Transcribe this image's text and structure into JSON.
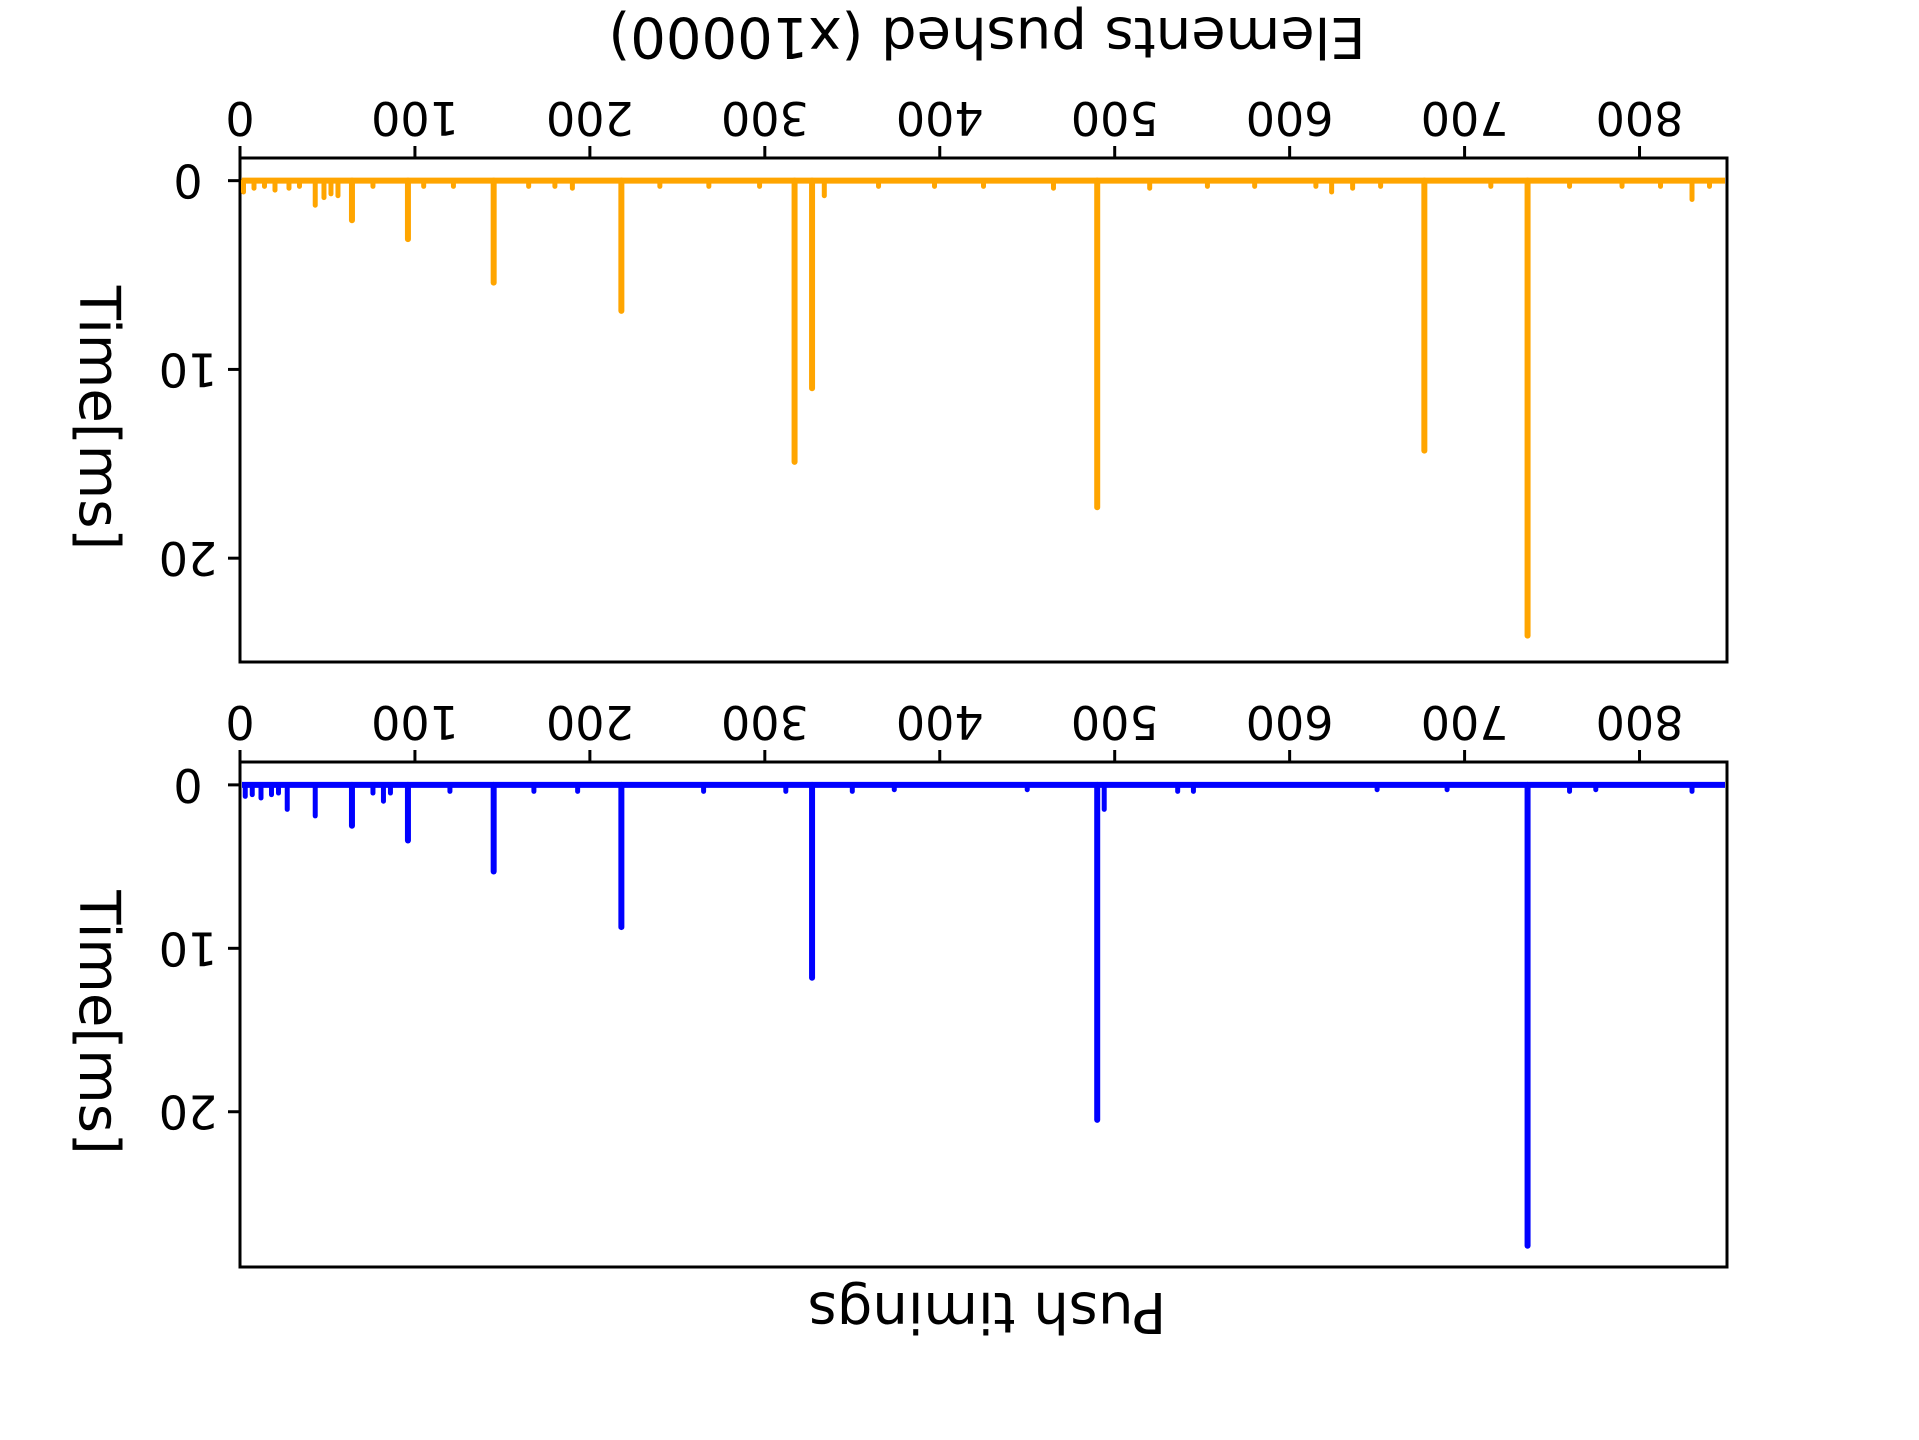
{
  "chart_data": [
    {
      "type": "line",
      "title": "Elements pushed (x10000)",
      "xlabel": "",
      "ylabel": "Time[ms]",
      "xlim": [
        0,
        850
      ],
      "ylim": [
        -1.2,
        25.5
      ],
      "x_ticks": [
        0,
        100,
        200,
        300,
        400,
        500,
        600,
        700,
        800
      ],
      "y_ticks": [
        0,
        10,
        20
      ],
      "line_color": "#ffa500",
      "spikes": [
        {
          "x": 2,
          "y": 0.6
        },
        {
          "x": 8,
          "y": 0.4
        },
        {
          "x": 14,
          "y": 0.3
        },
        {
          "x": 20,
          "y": 0.5
        },
        {
          "x": 28,
          "y": 0.4
        },
        {
          "x": 34,
          "y": 0.3
        },
        {
          "x": 43,
          "y": 1.3
        },
        {
          "x": 48,
          "y": 0.9
        },
        {
          "x": 52,
          "y": 0.7
        },
        {
          "x": 56,
          "y": 0.8
        },
        {
          "x": 64,
          "y": 2.1
        },
        {
          "x": 76,
          "y": 0.3
        },
        {
          "x": 96,
          "y": 3.1
        },
        {
          "x": 105,
          "y": 0.3
        },
        {
          "x": 122,
          "y": 0.3
        },
        {
          "x": 145,
          "y": 5.4
        },
        {
          "x": 165,
          "y": 0.3
        },
        {
          "x": 180,
          "y": 0.3
        },
        {
          "x": 190,
          "y": 0.4
        },
        {
          "x": 218,
          "y": 6.9
        },
        {
          "x": 240,
          "y": 0.3
        },
        {
          "x": 268,
          "y": 0.3
        },
        {
          "x": 297,
          "y": 0.3
        },
        {
          "x": 317,
          "y": 14.9
        },
        {
          "x": 327,
          "y": 11.0
        },
        {
          "x": 334,
          "y": 0.8
        },
        {
          "x": 365,
          "y": 0.3
        },
        {
          "x": 397,
          "y": 0.3
        },
        {
          "x": 425,
          "y": 0.3
        },
        {
          "x": 465,
          "y": 0.4
        },
        {
          "x": 490,
          "y": 17.3
        },
        {
          "x": 520,
          "y": 0.4
        },
        {
          "x": 553,
          "y": 0.3
        },
        {
          "x": 580,
          "y": 0.3
        },
        {
          "x": 615,
          "y": 0.3
        },
        {
          "x": 624,
          "y": 0.6
        },
        {
          "x": 636,
          "y": 0.4
        },
        {
          "x": 652,
          "y": 0.3
        },
        {
          "x": 677,
          "y": 14.3
        },
        {
          "x": 715,
          "y": 0.3
        },
        {
          "x": 736,
          "y": 24.1
        },
        {
          "x": 760,
          "y": 0.3
        },
        {
          "x": 790,
          "y": 0.3
        },
        {
          "x": 812,
          "y": 0.3
        },
        {
          "x": 830,
          "y": 1.0
        },
        {
          "x": 840,
          "y": 0.3
        }
      ]
    },
    {
      "type": "line",
      "title": "",
      "xlabel": "Push timings",
      "ylabel": "Time[ms]",
      "xlim": [
        0,
        850
      ],
      "ylim": [
        -1.4,
        29.5
      ],
      "x_ticks": [
        0,
        100,
        200,
        300,
        400,
        500,
        600,
        700,
        800
      ],
      "y_ticks": [
        0,
        10,
        20
      ],
      "line_color": "#0000ff",
      "spikes": [
        {
          "x": 3,
          "y": 0.7
        },
        {
          "x": 7,
          "y": 0.6
        },
        {
          "x": 12,
          "y": 0.8
        },
        {
          "x": 18,
          "y": 0.6
        },
        {
          "x": 22,
          "y": 0.5
        },
        {
          "x": 27,
          "y": 1.5
        },
        {
          "x": 43,
          "y": 1.9
        },
        {
          "x": 64,
          "y": 2.5
        },
        {
          "x": 76,
          "y": 0.5
        },
        {
          "x": 82,
          "y": 1.0
        },
        {
          "x": 86,
          "y": 0.5
        },
        {
          "x": 96,
          "y": 3.4
        },
        {
          "x": 120,
          "y": 0.4
        },
        {
          "x": 145,
          "y": 5.3
        },
        {
          "x": 168,
          "y": 0.4
        },
        {
          "x": 193,
          "y": 0.4
        },
        {
          "x": 218,
          "y": 8.7
        },
        {
          "x": 265,
          "y": 0.4
        },
        {
          "x": 312,
          "y": 0.4
        },
        {
          "x": 327,
          "y": 11.8
        },
        {
          "x": 350,
          "y": 0.4
        },
        {
          "x": 374,
          "y": 0.3
        },
        {
          "x": 450,
          "y": 0.3
        },
        {
          "x": 490,
          "y": 20.5
        },
        {
          "x": 494,
          "y": 1.5
        },
        {
          "x": 536,
          "y": 0.4
        },
        {
          "x": 545,
          "y": 0.4
        },
        {
          "x": 650,
          "y": 0.3
        },
        {
          "x": 690,
          "y": 0.3
        },
        {
          "x": 736,
          "y": 28.2
        },
        {
          "x": 760,
          "y": 0.4
        },
        {
          "x": 775,
          "y": 0.3
        },
        {
          "x": 830,
          "y": 0.4
        }
      ]
    }
  ]
}
